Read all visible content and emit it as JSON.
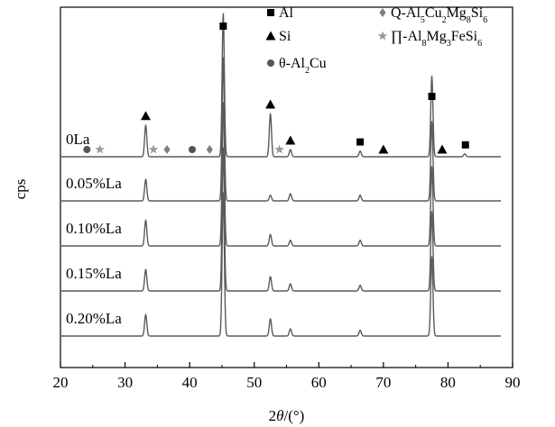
{
  "chart_data": {
    "type": "line",
    "title": "",
    "xlabel_parts": [
      "2",
      "θ",
      "/(°)"
    ],
    "ylabel": "cps",
    "xlim": [
      20,
      90
    ],
    "xticks": [
      20,
      30,
      40,
      50,
      60,
      70,
      80,
      90
    ],
    "y_ticks_shown": false,
    "grid": false,
    "legend_placement": "top-right inside",
    "line_color": "#5a5a5a",
    "series": [
      {
        "name": "0La",
        "peaks": [
          {
            "x": 33.2,
            "h": 0.22
          },
          {
            "x": 45.2,
            "h": 1.0
          },
          {
            "x": 52.5,
            "h": 0.3
          },
          {
            "x": 55.6,
            "h": 0.05
          },
          {
            "x": 66.4,
            "h": 0.04
          },
          {
            "x": 77.5,
            "h": 0.56
          },
          {
            "x": 82.6,
            "h": 0.02
          }
        ],
        "markers": [
          {
            "x": 24.1,
            "type": "theta-Al2Cu"
          },
          {
            "x": 26.1,
            "type": "pi-Al8Mg3FeSi6"
          },
          {
            "x": 33.2,
            "type": "Si"
          },
          {
            "x": 34.4,
            "type": "pi-Al8Mg3FeSi6"
          },
          {
            "x": 36.5,
            "type": "Q-Al5Cu2Mg8Si6"
          },
          {
            "x": 40.4,
            "type": "theta-Al2Cu"
          },
          {
            "x": 43.1,
            "type": "Q-Al5Cu2Mg8Si6"
          },
          {
            "x": 45.2,
            "type": "Al"
          },
          {
            "x": 52.5,
            "type": "Si"
          },
          {
            "x": 53.9,
            "type": "pi-Al8Mg3FeSi6"
          },
          {
            "x": 55.6,
            "type": "Si"
          },
          {
            "x": 66.4,
            "type": "Al"
          },
          {
            "x": 70.0,
            "type": "Si"
          },
          {
            "x": 79.1,
            "type": "Si"
          },
          {
            "x": 77.5,
            "type": "Al"
          },
          {
            "x": 82.7,
            "type": "Al"
          }
        ]
      },
      {
        "name": "0.05%La",
        "peaks": [
          {
            "x": 33.2,
            "h": 0.15
          },
          {
            "x": 45.2,
            "h": 1.0
          },
          {
            "x": 52.5,
            "h": 0.04
          },
          {
            "x": 55.6,
            "h": 0.05
          },
          {
            "x": 66.4,
            "h": 0.04
          },
          {
            "x": 77.5,
            "h": 0.55
          }
        ]
      },
      {
        "name": "0.10%La",
        "peaks": [
          {
            "x": 33.2,
            "h": 0.18
          },
          {
            "x": 45.2,
            "h": 1.0
          },
          {
            "x": 52.5,
            "h": 0.08
          },
          {
            "x": 55.6,
            "h": 0.04
          },
          {
            "x": 66.4,
            "h": 0.04
          },
          {
            "x": 77.5,
            "h": 0.55
          }
        ]
      },
      {
        "name": "0.15%La",
        "peaks": [
          {
            "x": 33.2,
            "h": 0.15
          },
          {
            "x": 45.2,
            "h": 1.0
          },
          {
            "x": 52.5,
            "h": 0.1
          },
          {
            "x": 55.6,
            "h": 0.05
          },
          {
            "x": 66.4,
            "h": 0.04
          },
          {
            "x": 77.5,
            "h": 0.55
          }
        ]
      },
      {
        "name": "0.20%La",
        "peaks": [
          {
            "x": 33.2,
            "h": 0.15
          },
          {
            "x": 45.2,
            "h": 1.0
          },
          {
            "x": 52.5,
            "h": 0.12
          },
          {
            "x": 55.6,
            "h": 0.05
          },
          {
            "x": 66.4,
            "h": 0.04
          },
          {
            "x": 77.5,
            "h": 0.55
          }
        ]
      }
    ],
    "legend": [
      {
        "type": "Al",
        "shape": "square",
        "color": "#000000",
        "parts": [
          [
            "Al",
            false
          ]
        ]
      },
      {
        "type": "Si",
        "shape": "triangle",
        "color": "#000000",
        "parts": [
          [
            "Si",
            false
          ]
        ]
      },
      {
        "type": "theta-Al2Cu",
        "shape": "circle",
        "color": "#555555",
        "parts": [
          [
            "θ-Al",
            false
          ],
          [
            "2",
            true
          ],
          [
            "Cu",
            false
          ]
        ]
      },
      {
        "type": "Q-Al5Cu2Mg8Si6",
        "shape": "diamond",
        "color": "#808080",
        "parts": [
          [
            "Q-Al",
            false
          ],
          [
            "5",
            true
          ],
          [
            "Cu",
            false
          ],
          [
            "2",
            true
          ],
          [
            "Mg",
            false
          ],
          [
            "8",
            true
          ],
          [
            "Si",
            false
          ],
          [
            "6",
            true
          ]
        ]
      },
      {
        "type": "pi-Al8Mg3FeSi6",
        "shape": "star",
        "color": "#999999",
        "parts": [
          [
            "∏-Al",
            false
          ],
          [
            "8",
            true
          ],
          [
            "Mg",
            false
          ],
          [
            "3",
            true
          ],
          [
            "FeSi",
            false
          ],
          [
            "6",
            true
          ]
        ]
      }
    ]
  }
}
